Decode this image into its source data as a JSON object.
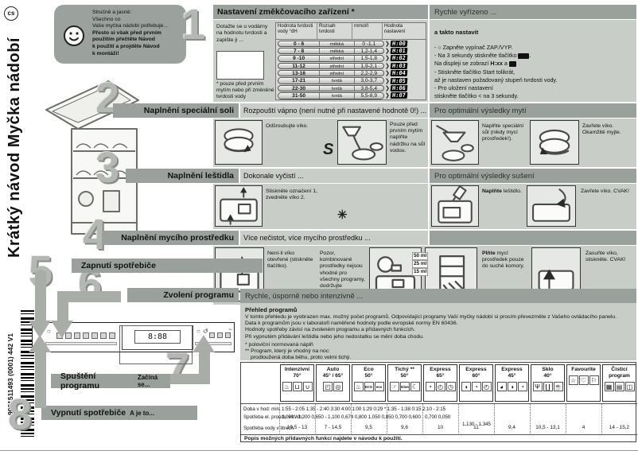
{
  "page": {
    "lang": "cs",
    "vertical_title": "Krátký návod Myčka nádobí",
    "barcode_text": "9001511493 (0001) 442 V1"
  },
  "intro": {
    "lines": [
      "Stručně a jasně:",
      "Všechno co",
      "Vaše myčka nádobí potřebuje..."
    ],
    "bold_lines": [
      "Přesto si však před prvním",
      "použitím přečtěte Návod",
      "k použití a projděte Návod",
      "k montáži!"
    ]
  },
  "step1": {
    "num": "1",
    "title": "Nastavení změkčovacího zařízení *",
    "note": "Dotažte se u vodárny na hodnotu tvrdosti a zapište ji ...",
    "footnote": "* pouze před prvním mytím nebo při změněné tvrdosti vody",
    "table": {
      "headers": [
        "Hodnota tvrdosti vody °dH",
        "Rozsah tvrdosti",
        "mmol/l",
        "Hodnota nastavení"
      ],
      "rows": [
        {
          "dh": "0 - 6",
          "range": "měkká",
          "mmol": "0 -1,1",
          "set": "H:00"
        },
        {
          "dh": "7 - 8",
          "range": "měkká",
          "mmol": "1,2-1,4",
          "set": "H:01"
        },
        {
          "dh": "9 -10",
          "range": "střední",
          "mmol": "1,5-1,8",
          "set": "H:02"
        },
        {
          "dh": "11-12",
          "range": "střední",
          "mmol": "1,9-2,1",
          "set": "H:03"
        },
        {
          "dh": "13-16",
          "range": "střední",
          "mmol": "2,2-2,9",
          "set": "H:04"
        },
        {
          "dh": "17-21",
          "range": "tvrdá",
          "mmol": "3,0-3,7",
          "set": "H:05"
        },
        {
          "dh": "22-30",
          "range": "tvrdá",
          "mmol": "3,8-5,4",
          "set": "H:06"
        },
        {
          "dh": "31-50",
          "range": "tvrdá",
          "mmol": "5,5-8,9",
          "set": "H:07"
        }
      ]
    },
    "right": {
      "header": "Rychle vyřízeno ...",
      "subheader": "a takto nastavit",
      "bullets": [
        [
          "- ",
          {
            "icon": "power-icon"
          },
          " Zapněte vypínač ZAP./VYP."
        ],
        [
          "- Na 3 sekundy stiskněte tlačítko ",
          {
            "icon": "setup-keys-badge"
          },
          "."
        ],
        [
          "Na displeji se zobrazí ",
          {
            "bold": "H:xx"
          },
          " a ",
          {
            "icon": "display-badge"
          }
        ],
        [
          "- Stiskněte tlačítko Start tolikrát,"
        ],
        [
          "až je nastaven požadovaný stupeň tvrdosti vody."
        ],
        [
          "- Pro uložení nastavení"
        ],
        [
          "stiskněte tlačítko < na 3 sekundy."
        ]
      ]
    }
  },
  "step2": {
    "num": "2",
    "title": "Naplnění speciální soli",
    "lead": "Rozpouští vápno (není nutné při nastavené hodnotě 0!) ...",
    "right_header": "Pro optimální výsledky mytí",
    "salt_symbol": "S",
    "left_panels": [
      {
        "sketch": "cap-open",
        "caption": [
          "Odšroubujte víko."
        ]
      },
      {
        "sketch": "pour-water",
        "caption": [
          "Pouze před prvním mytím naplňte nádržku na sůl vodou."
        ]
      }
    ],
    "right_panels": [
      {
        "sketch": "funnel-salt",
        "caption": [
          "Naplňte speciální sůl (nikdy mycí prostředek!)."
        ]
      },
      {
        "sketch": "cap-close",
        "caption": [
          "Zavřete víko. Okamžitě myjte."
        ]
      }
    ]
  },
  "step3": {
    "num": "3",
    "title": "Naplnění leštidla",
    "lead": "Dokonale vyčistí ...",
    "right_header": "Pro optimální výsledky sušení",
    "sparkle": "✳",
    "left_panels": [
      {
        "sketch": "dispenser-open",
        "caption": [
          "Stiskněte označení 1, zvedněte víko 2."
        ]
      }
    ],
    "right_panels": [
      {
        "sketch": "bottle-fill",
        "caption": [
          {
            "bold": "Naplňte"
          },
          " leštidlo."
        ]
      },
      {
        "sketch": "flap-close",
        "caption": [
          "Zavřete víko. CVAK!"
        ]
      }
    ]
  },
  "step4": {
    "num": "4",
    "title": "Naplnění mycího prostředku",
    "lead": "Více nečistot, více mycího prostředku ...",
    "spray": "∕∕∕",
    "panels": [
      {
        "sketch": "press-button",
        "caption": [
          "Není-li víko otevřené (stiskněte tlačítko)."
        ],
        "caption2": [
          "Pozor, kombinované prostředky nejsou vhodné pro všechny programy, dodržujte upozornění výrobců."
        ]
      },
      {
        "sketch": "tablet-hand"
      },
      {
        "sketch": "chamber-ml",
        "ml": [
          "50 ml",
          "25 ml",
          "15 ml"
        ],
        "caption": [
          {
            "bold": "Plňte"
          },
          " mycí prostředek pouze do suché komory."
        ]
      },
      {
        "sketch": "slide-close",
        "caption": [
          "Zasuňte víko, stiskněte. CVAK!"
        ]
      }
    ]
  },
  "step5": {
    "num": "5",
    "title": "Zapnutí spotřebiče"
  },
  "step6": {
    "num": "6",
    "title": "Zvolení programu",
    "right_header": "Rychle, úsporně nebo intenzivně ..."
  },
  "step7": {
    "num": "7",
    "title": "Spuštění programu",
    "suffix": "Začíná se..."
  },
  "step8": {
    "num": "8",
    "title": "Vypnutí spotřebiče",
    "suffix": "A je to..."
  },
  "panel": {
    "display_text": "8:88"
  },
  "overview": {
    "title": "Přehled programů",
    "paragraphs": [
      "V tomto přehledu je vyobrazen max. možný počet programů. Odpovídající programy Vaší myčky nádobí si prosím převezměte z Vašeho ovládacího panelu.",
      "Data k programům jsou v laboratoři naměřené hodnoty podle evropské normy EN 60436.",
      "Hodnoty spotřeby závisí na zvoleném programu a přídavných funkcích.",
      "Při vypnutém přidávání leštidla nebo jeho nedostatku se mění doba chodu."
    ],
    "footnotes": [
      "* poloviční normovaná náplň",
      "** Program, který je vhodný na noc:",
      "prodloužená doba běhu, proto velmi tichý."
    ]
  },
  "programs": {
    "columns": [
      {
        "line1": "Intenzivní",
        "line2": "70°",
        "icons": [
          "pot-icon",
          "casserole-icon",
          "pan-icon"
        ]
      },
      {
        "line1": "Auto",
        "line2": "45° / 65°",
        "icons": [
          "jug-icon",
          "plate-icon"
        ]
      },
      {
        "line1": "Eco",
        "line2": "50°",
        "icons": [
          "pot-icon",
          "eco-badge",
          "eco-small-badge"
        ]
      },
      {
        "line1": "Tichý **",
        "line2": "50°",
        "icons": [
          "hand-icon",
          "silence-badge",
          "moon-icon"
        ]
      },
      {
        "line1": "Express",
        "line2": "65°",
        "icons": [
          "clock1-icon",
          "timer-icon",
          "timer2-icon"
        ]
      },
      {
        "line1": "Express",
        "line2": "60°",
        "icons": [
          "clock2-icon",
          "clock1-icon",
          "timer-icon"
        ]
      },
      {
        "line1": "Express",
        "line2": "45°",
        "icons": [
          "clock3-icon",
          "clock2-icon",
          "clock1-icon"
        ]
      },
      {
        "line1": "Sklo",
        "line2": "40°",
        "icons": [
          "wineglass-icon",
          "glasses-icon",
          "cup-icon"
        ]
      },
      {
        "line1": "Favourite",
        "line2": "",
        "icons": [
          "star-icon",
          "heart-icon",
          "flag-icon"
        ]
      },
      {
        "line1": "Čisticí",
        "line2": "program",
        "icons": [
          "machine-icon",
          "care-badge",
          "door-icon"
        ]
      }
    ],
    "rows": {
      "duration_label": "Doba v hod: min.",
      "duration_line": "1:55 - 2:05 1:35 - 2:40 3:30 4:00 1:00 1:29 0:29 * 1:35 - 1:38 0:15 2:10 - 2:15",
      "energy_label": "Spotřeba el. proudu v kWh",
      "energy_line": "1,090 - 1,200 0,650 - 1,100 0,674 0,800 1,050 0,850 0,700 0,600 - 0,700 0,050",
      "energy_line2": "1,130 - 1,345",
      "water_label": "Spotřeba vody v litrech",
      "water_values": [
        "10,5 - 13",
        "7 - 14,5",
        "9,5",
        "9,6",
        "10",
        "11",
        "9,4",
        "10,5 - 13,1",
        "4",
        "14 - 15,2"
      ]
    },
    "footer": "Popis možných přídavných funkcí najdete v návodu k použití."
  }
}
